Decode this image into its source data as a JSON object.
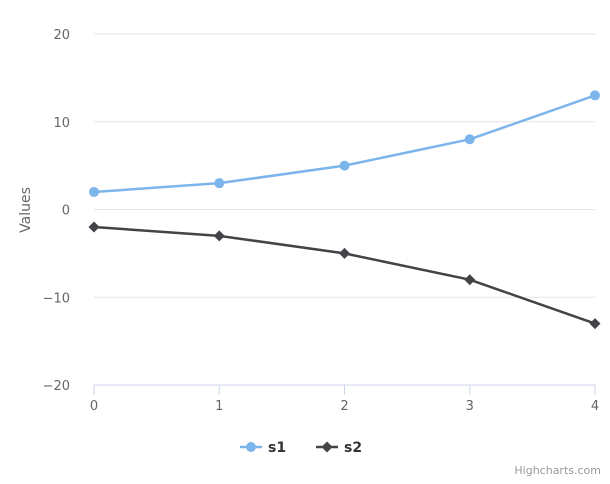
{
  "chart_data": {
    "type": "line",
    "title": "",
    "ylabel": "Values",
    "xlabel": "",
    "ylim": [
      -20,
      20
    ],
    "yticks": [
      20,
      10,
      0,
      -10,
      -20
    ],
    "yticks_labels": [
      "20",
      "10",
      "0",
      "−10",
      "−20"
    ],
    "x": [
      0,
      1,
      2,
      3,
      4
    ],
    "xtick_labels": [
      "0",
      "1",
      "2",
      "3",
      "4"
    ],
    "grid": true,
    "legend_position": "bottom-center",
    "series": [
      {
        "name": "s1",
        "values": [
          2,
          3,
          5,
          8,
          13
        ],
        "color": "#7cb5ec",
        "marker": "circle"
      },
      {
        "name": "s2",
        "values": [
          -2,
          -3,
          -5,
          -8,
          -13
        ],
        "color": "#434348",
        "marker": "diamond"
      }
    ]
  },
  "credits": "Highcharts.com"
}
